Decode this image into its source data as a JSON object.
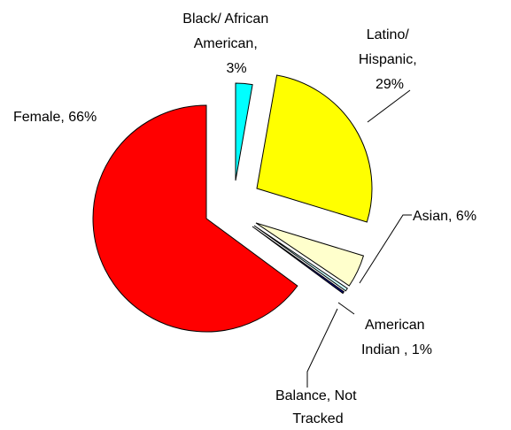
{
  "chart_data": {
    "type": "pie",
    "title": "",
    "slices": [
      {
        "label": "Female, 66%",
        "category": "Female",
        "value": 66,
        "color": "#FF0000"
      },
      {
        "label": "Black/ African American, 3%",
        "category": "Black/ African American",
        "value": 3,
        "color": "#00FFFF"
      },
      {
        "label": "Latino/ Hispanic, 29%",
        "category": "Latino/ Hispanic",
        "value": 29,
        "color": "#FFFF00"
      },
      {
        "label": "Asian, 6%",
        "category": "Asian",
        "value": 6,
        "color": "#FFFFCC"
      },
      {
        "label": "American Indian , 1%",
        "category": "American Indian",
        "value": 1,
        "color": "#CCFFFF"
      },
      {
        "label": "Balance, Not Tracked",
        "category": "Balance, Not Tracked",
        "value": null,
        "color": "#000080"
      }
    ],
    "labels": {
      "female": [
        "Female, 66%"
      ],
      "black": [
        "Black/ African",
        "American,",
        "3%"
      ],
      "latino": [
        "Latino/",
        "Hispanic,",
        "29%"
      ],
      "asian": [
        "Asian, 6%"
      ],
      "american_indian": [
        "American",
        "Indian , 1%"
      ],
      "balance": [
        "Balance, Not",
        "Tracked"
      ]
    },
    "legend": "none"
  }
}
